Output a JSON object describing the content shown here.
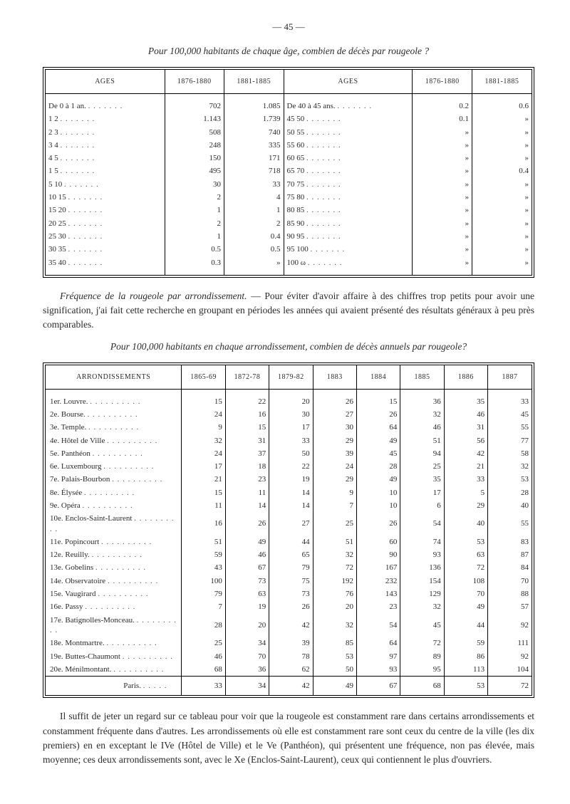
{
  "page_number": "— 45 —",
  "caption1": "Pour 100,000 habitants de chaque âge, combien de décès par rougeole ?",
  "table1": {
    "headers": [
      "AGES",
      "1876-1880",
      "1881-1885",
      "AGES",
      "1876-1880",
      "1881-1885"
    ],
    "rows": [
      [
        "De 0 à 1 an.",
        "702",
        "1.085",
        "De 40 à 45 ans.",
        "0.2",
        "0.6"
      ],
      [
        "1   2",
        "1.143",
        "1.739",
        "45   50",
        "0.1",
        "»"
      ],
      [
        "2   3",
        "508",
        "740",
        "50   55",
        "»",
        "»"
      ],
      [
        "3   4",
        "248",
        "335",
        "55   60",
        "»",
        "»"
      ],
      [
        "4   5",
        "150",
        "171",
        "60   65",
        "»",
        "»"
      ],
      [
        "1   5",
        "495",
        "718",
        "65   70",
        "»",
        "0.4"
      ],
      [
        "5   10",
        "30",
        "33",
        "70   75",
        "»",
        "»"
      ],
      [
        "10   15",
        "2",
        "4",
        "75   80",
        "»",
        "»"
      ],
      [
        "15   20",
        "1",
        "1",
        "80   85",
        "»",
        "»"
      ],
      [
        "20   25",
        "2",
        "2",
        "85   90",
        "»",
        "»"
      ],
      [
        "25   30",
        "1",
        "0.4",
        "90   95",
        "»",
        "»"
      ],
      [
        "30   35",
        "0.5",
        "0.5",
        "95  100",
        "»",
        "»"
      ],
      [
        "35   40",
        "0.3",
        "»",
        "100   ω",
        "»",
        "»"
      ]
    ]
  },
  "para1_lead": "Fréquence de la rougeole par arrondissement.",
  "para1_rest": " — Pour éviter d'avoir affaire à des chiffres trop petits pour avoir une signification, j'ai fait cette recherche en groupant en périodes les années qui avaient présenté des résultats généraux à peu près comparables.",
  "caption2": "Pour 100,000 habitants en chaque arrondissement, combien de décès annuels par rougeole?",
  "table2": {
    "headers": [
      "ARRONDISSEMENTS",
      "1865-69",
      "1872-78",
      "1879-82",
      "1883",
      "1884",
      "1885",
      "1886",
      "1887"
    ],
    "rows": [
      [
        "1er. Louvre.",
        "15",
        "22",
        "20",
        "26",
        "15",
        "36",
        "35",
        "33"
      ],
      [
        "2e.  Bourse.",
        "24",
        "16",
        "30",
        "27",
        "26",
        "32",
        "46",
        "45"
      ],
      [
        "3e.  Temple.",
        "9",
        "15",
        "17",
        "30",
        "64",
        "46",
        "31",
        "55"
      ],
      [
        "4e.  Hôtel de Ville",
        "32",
        "31",
        "33",
        "29",
        "49",
        "51",
        "56",
        "77"
      ],
      [
        "5e.  Panthéon",
        "24",
        "37",
        "50",
        "39",
        "45",
        "94",
        "42",
        "58"
      ],
      [
        "6e.  Luxembourg",
        "17",
        "18",
        "22",
        "24",
        "28",
        "25",
        "21",
        "32"
      ],
      [
        "7e.  Palais-Bourbon",
        "21",
        "23",
        "19",
        "29",
        "49",
        "35",
        "33",
        "53"
      ],
      [
        "8e.  Élysée",
        "15",
        "11",
        "14",
        "9",
        "10",
        "17",
        "5",
        "28"
      ],
      [
        "9e.  Opéra",
        "11",
        "14",
        "14",
        "7",
        "10",
        "6",
        "29",
        "40"
      ],
      [
        "10e. Enclos-Saint-Laurent",
        "16",
        "26",
        "27",
        "25",
        "26",
        "54",
        "40",
        "55"
      ],
      [
        "11e. Popincourt",
        "51",
        "49",
        "44",
        "51",
        "60",
        "74",
        "53",
        "83"
      ],
      [
        "12e. Reuilly.",
        "59",
        "46",
        "65",
        "32",
        "90",
        "93",
        "63",
        "87"
      ],
      [
        "13e. Gobelins",
        "43",
        "67",
        "79",
        "72",
        "167",
        "136",
        "72",
        "84"
      ],
      [
        "14e. Observatoire",
        "100",
        "73",
        "75",
        "192",
        "232",
        "154",
        "108",
        "70"
      ],
      [
        "15e. Vaugirard",
        "79",
        "63",
        "73",
        "76",
        "143",
        "129",
        "70",
        "88"
      ],
      [
        "16e. Passy",
        "7",
        "19",
        "26",
        "20",
        "23",
        "32",
        "49",
        "57"
      ],
      [
        "17e. Batignolles-Monceau.",
        "28",
        "20",
        "42",
        "32",
        "54",
        "45",
        "44",
        "92"
      ],
      [
        "18e. Montmartre.",
        "25",
        "34",
        "39",
        "85",
        "64",
        "72",
        "59",
        "111"
      ],
      [
        "19e. Buttes-Chaumont",
        "46",
        "70",
        "78",
        "53",
        "97",
        "89",
        "86",
        "92"
      ],
      [
        "20e. Ménilmontant.",
        "68",
        "36",
        "62",
        "50",
        "93",
        "95",
        "113",
        "104"
      ]
    ],
    "total": [
      "Paris.",
      "33",
      "34",
      "42",
      "49",
      "67",
      "68",
      "53",
      "72"
    ]
  },
  "para2": "Il suffit de jeter un regard sur ce tableau pour voir que la rougeole est constamment rare dans certains arrondissements et constamment fréquente dans d'autres. Les arrondissements où elle est constamment rare sont ceux du centre de la ville (les dix premiers) en en exceptant le IVe (Hôtel de Ville) et le Ve (Panthéon), qui présentent une fréquence, non pas élevée, mais moyenne; ces deux arrondissements sont, avec le Xe (Enclos-Saint-Laurent), ceux qui contiennent le plus d'ouvriers."
}
